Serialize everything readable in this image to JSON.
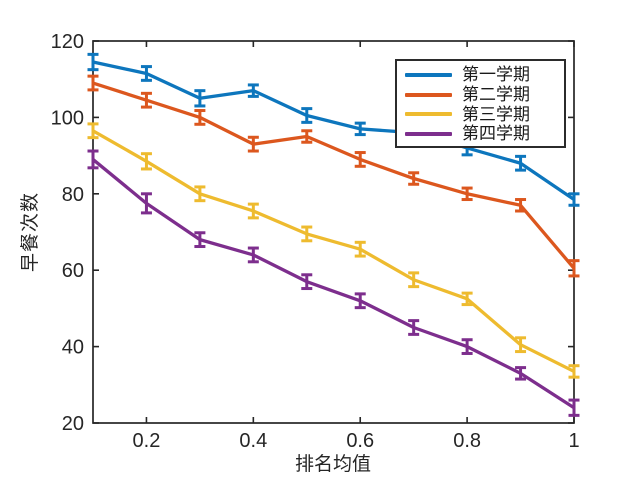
{
  "figure": {
    "background": "#ffffff",
    "axis_color": "#262626",
    "text_color": "#262626"
  },
  "chart_data": {
    "type": "line",
    "title": "",
    "xlabel": "排名均值",
    "ylabel": "早餐次数",
    "xlim": [
      0.1,
      1.0
    ],
    "ylim": [
      20,
      120
    ],
    "xticks": [
      0.2,
      0.4,
      0.6,
      0.8,
      1.0
    ],
    "xtick_labels": [
      "0.2",
      "0.4",
      "0.6",
      "0.8",
      "1"
    ],
    "yticks": [
      20,
      40,
      60,
      80,
      100,
      120
    ],
    "ytick_labels": [
      "20",
      "40",
      "60",
      "80",
      "100",
      "120"
    ],
    "grid": false,
    "error_bars": true,
    "legend_position": "top-right",
    "x": [
      0.1,
      0.2,
      0.3,
      0.4,
      0.5,
      0.6,
      0.7,
      0.8,
      0.9,
      1.0
    ],
    "series": [
      {
        "name": "第一学期",
        "color": "#0d76bd",
        "values": [
          114.5,
          111.5,
          105,
          107,
          100.5,
          97,
          96,
          92,
          88,
          78.5
        ],
        "errors": [
          2,
          1.8,
          2,
          1.5,
          1.8,
          1.5,
          1.5,
          1.8,
          1.8,
          1.5
        ]
      },
      {
        "name": "第二学期",
        "color": "#dc571e",
        "values": [
          109,
          104.5,
          100,
          93,
          95,
          89,
          84,
          80,
          77,
          60.5
        ],
        "errors": [
          1.8,
          1.8,
          1.8,
          1.8,
          1.5,
          1.8,
          1.5,
          1.5,
          1.5,
          2
        ]
      },
      {
        "name": "第三学期",
        "color": "#eebb2f",
        "values": [
          96.5,
          88.5,
          80,
          75.5,
          69.5,
          65.5,
          57.5,
          52.5,
          40.5,
          33.5
        ],
        "errors": [
          1.8,
          2,
          1.8,
          1.8,
          1.8,
          1.8,
          1.8,
          1.5,
          1.8,
          1.5
        ]
      },
      {
        "name": "第四学期",
        "color": "#7d2e8d",
        "values": [
          89,
          77.5,
          68,
          64,
          57,
          52,
          45,
          40,
          33,
          24
        ],
        "errors": [
          2.2,
          2.5,
          1.8,
          1.8,
          1.8,
          1.8,
          1.8,
          1.8,
          1.5,
          2
        ]
      }
    ]
  }
}
